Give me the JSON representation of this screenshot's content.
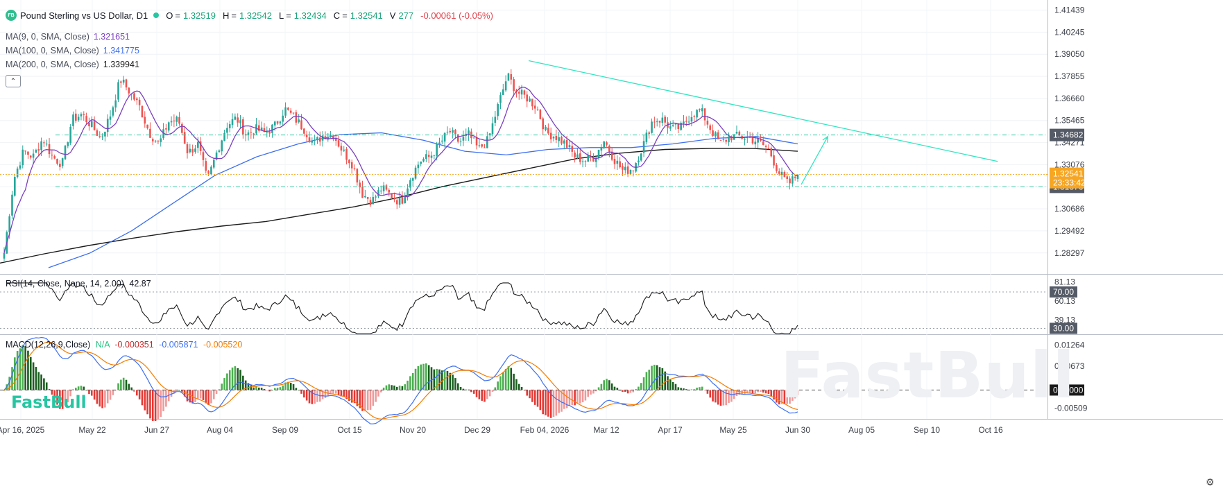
{
  "header": {
    "logo": "FB",
    "title": "Pound Sterling vs US Dollar, D1",
    "ohlc": [
      {
        "key": "O",
        "value": "1.32519"
      },
      {
        "key": "H",
        "value": "1.32542"
      },
      {
        "key": "L",
        "value": "1.32434"
      },
      {
        "key": "C",
        "value": "1.32541"
      },
      {
        "key": "V",
        "value": "277"
      }
    ],
    "change": "-0.00061 (-0.05%)"
  },
  "indicators": {
    "ma9": {
      "label": "MA(9, 0, SMA, Close)",
      "value": "1.321651",
      "color": "#7b3fc0"
    },
    "ma100": {
      "label": "MA(100, 0, SMA, Close)",
      "value": "1.341775",
      "color": "#3d6ff0"
    },
    "ma200": {
      "label": "MA(200, 0, SMA, Close)",
      "value": "1.339941",
      "color": "#1b1b1b"
    }
  },
  "collapse_icon": "chevron-up-icon",
  "rsi": {
    "label": "RSI(14, Close, None, 14, 2.00)",
    "value": "42.87",
    "overbought": "70.00",
    "oversold": "30.00",
    "ticks": [
      "81.13",
      "60.13",
      "39.13"
    ]
  },
  "macd": {
    "label": "MACD(12,26,9,Close)",
    "hist": "N/A",
    "v1": "-0.000351",
    "v2": "-0.005871",
    "v3": "-0.005520",
    "ticks": [
      "0.01264",
      "0.00673",
      "0.00000",
      "-0.00509"
    ],
    "zero_label": "0.00000"
  },
  "brand": {
    "watermark": "FastBull",
    "logo_text": "FastBull"
  },
  "colors": {
    "up": "#26a69a",
    "down": "#ef5350",
    "trend": "#2ee6c0",
    "ma9": "#7b3fc0",
    "ma100": "#3d6ff0",
    "ma200": "#1b1b1b",
    "macd": "#3d6ff0",
    "signal": "#f57c00",
    "price_tag": "#f6a623",
    "level_tag": "#555b66"
  },
  "chart_data": {
    "type": "candlestick",
    "symbol": "GBP/USD",
    "timeframe": "D1",
    "x_ticks": [
      "Apr 16, 2025",
      "May 22",
      "Jun 27",
      "Aug 04",
      "Sep 09",
      "Oct 15",
      "Nov 20",
      "Dec 29",
      "Feb 04, 2026",
      "Mar 12",
      "Apr 17",
      "May 25",
      "Jun 30",
      "Aug 05",
      "Sep 10",
      "Oct 16"
    ],
    "y_ticks": [
      "1.41439",
      "1.40245",
      "1.39050",
      "1.37855",
      "1.36660",
      "1.35465",
      "1.34271",
      "1.33076",
      "1.31876",
      "1.30686",
      "1.29492",
      "1.28297"
    ],
    "ylim": [
      1.2735,
      1.4191
    ],
    "current_price": {
      "value": 1.32541,
      "label": "1.32541",
      "countdown": "23:33:42"
    },
    "levels": [
      {
        "value": 1.34682,
        "label": "1.34682"
      },
      {
        "value": 1.31876,
        "label": "1.31876"
      }
    ],
    "trendline": {
      "from": {
        "date": "Jan 28, 2026",
        "price": 1.387
      },
      "to": {
        "date": "Oct 20, 2026",
        "price": 1.3325
      }
    },
    "projection_arrow": {
      "from": {
        "date": "Jul 01, 2026",
        "price": 1.32
      },
      "to": {
        "date": "Jul 16, 2026",
        "price": 1.346
      }
    },
    "closes": [
      1.283,
      1.323,
      1.338,
      1.335,
      1.345,
      1.335,
      1.331,
      1.355,
      1.358,
      1.352,
      1.345,
      1.358,
      1.377,
      1.37,
      1.362,
      1.348,
      1.342,
      1.354,
      1.355,
      1.337,
      1.342,
      1.322,
      1.338,
      1.352,
      1.356,
      1.347,
      1.35,
      1.348,
      1.352,
      1.361,
      1.356,
      1.35,
      1.342,
      1.347,
      1.347,
      1.338,
      1.331,
      1.315,
      1.311,
      1.318,
      1.314,
      1.31,
      1.324,
      1.333,
      1.335,
      1.342,
      1.349,
      1.343,
      1.347,
      1.339,
      1.344,
      1.362,
      1.379,
      1.37,
      1.367,
      1.362,
      1.348,
      1.346,
      1.342,
      1.335,
      1.333,
      1.335,
      1.344,
      1.334,
      1.327,
      1.329,
      1.341,
      1.355,
      1.355,
      1.35,
      1.351,
      1.358,
      1.36,
      1.35,
      1.342,
      1.346,
      1.346,
      1.345,
      1.343,
      1.339,
      1.327,
      1.32,
      1.3254
    ],
    "ma200_series": [
      1.2775,
      1.2825,
      1.287,
      1.291,
      1.2945,
      1.2975,
      1.3,
      1.304,
      1.308,
      1.313,
      1.319,
      1.324,
      1.329,
      1.334,
      1.337,
      1.339,
      1.3395,
      1.3395,
      1.338
    ],
    "ma100_series": [
      1.275,
      1.283,
      1.295,
      1.31,
      1.325,
      1.335,
      1.342,
      1.347,
      1.348,
      1.344,
      1.338,
      1.336,
      1.339,
      1.34,
      1.34,
      1.342,
      1.345,
      1.346,
      1.342
    ]
  }
}
